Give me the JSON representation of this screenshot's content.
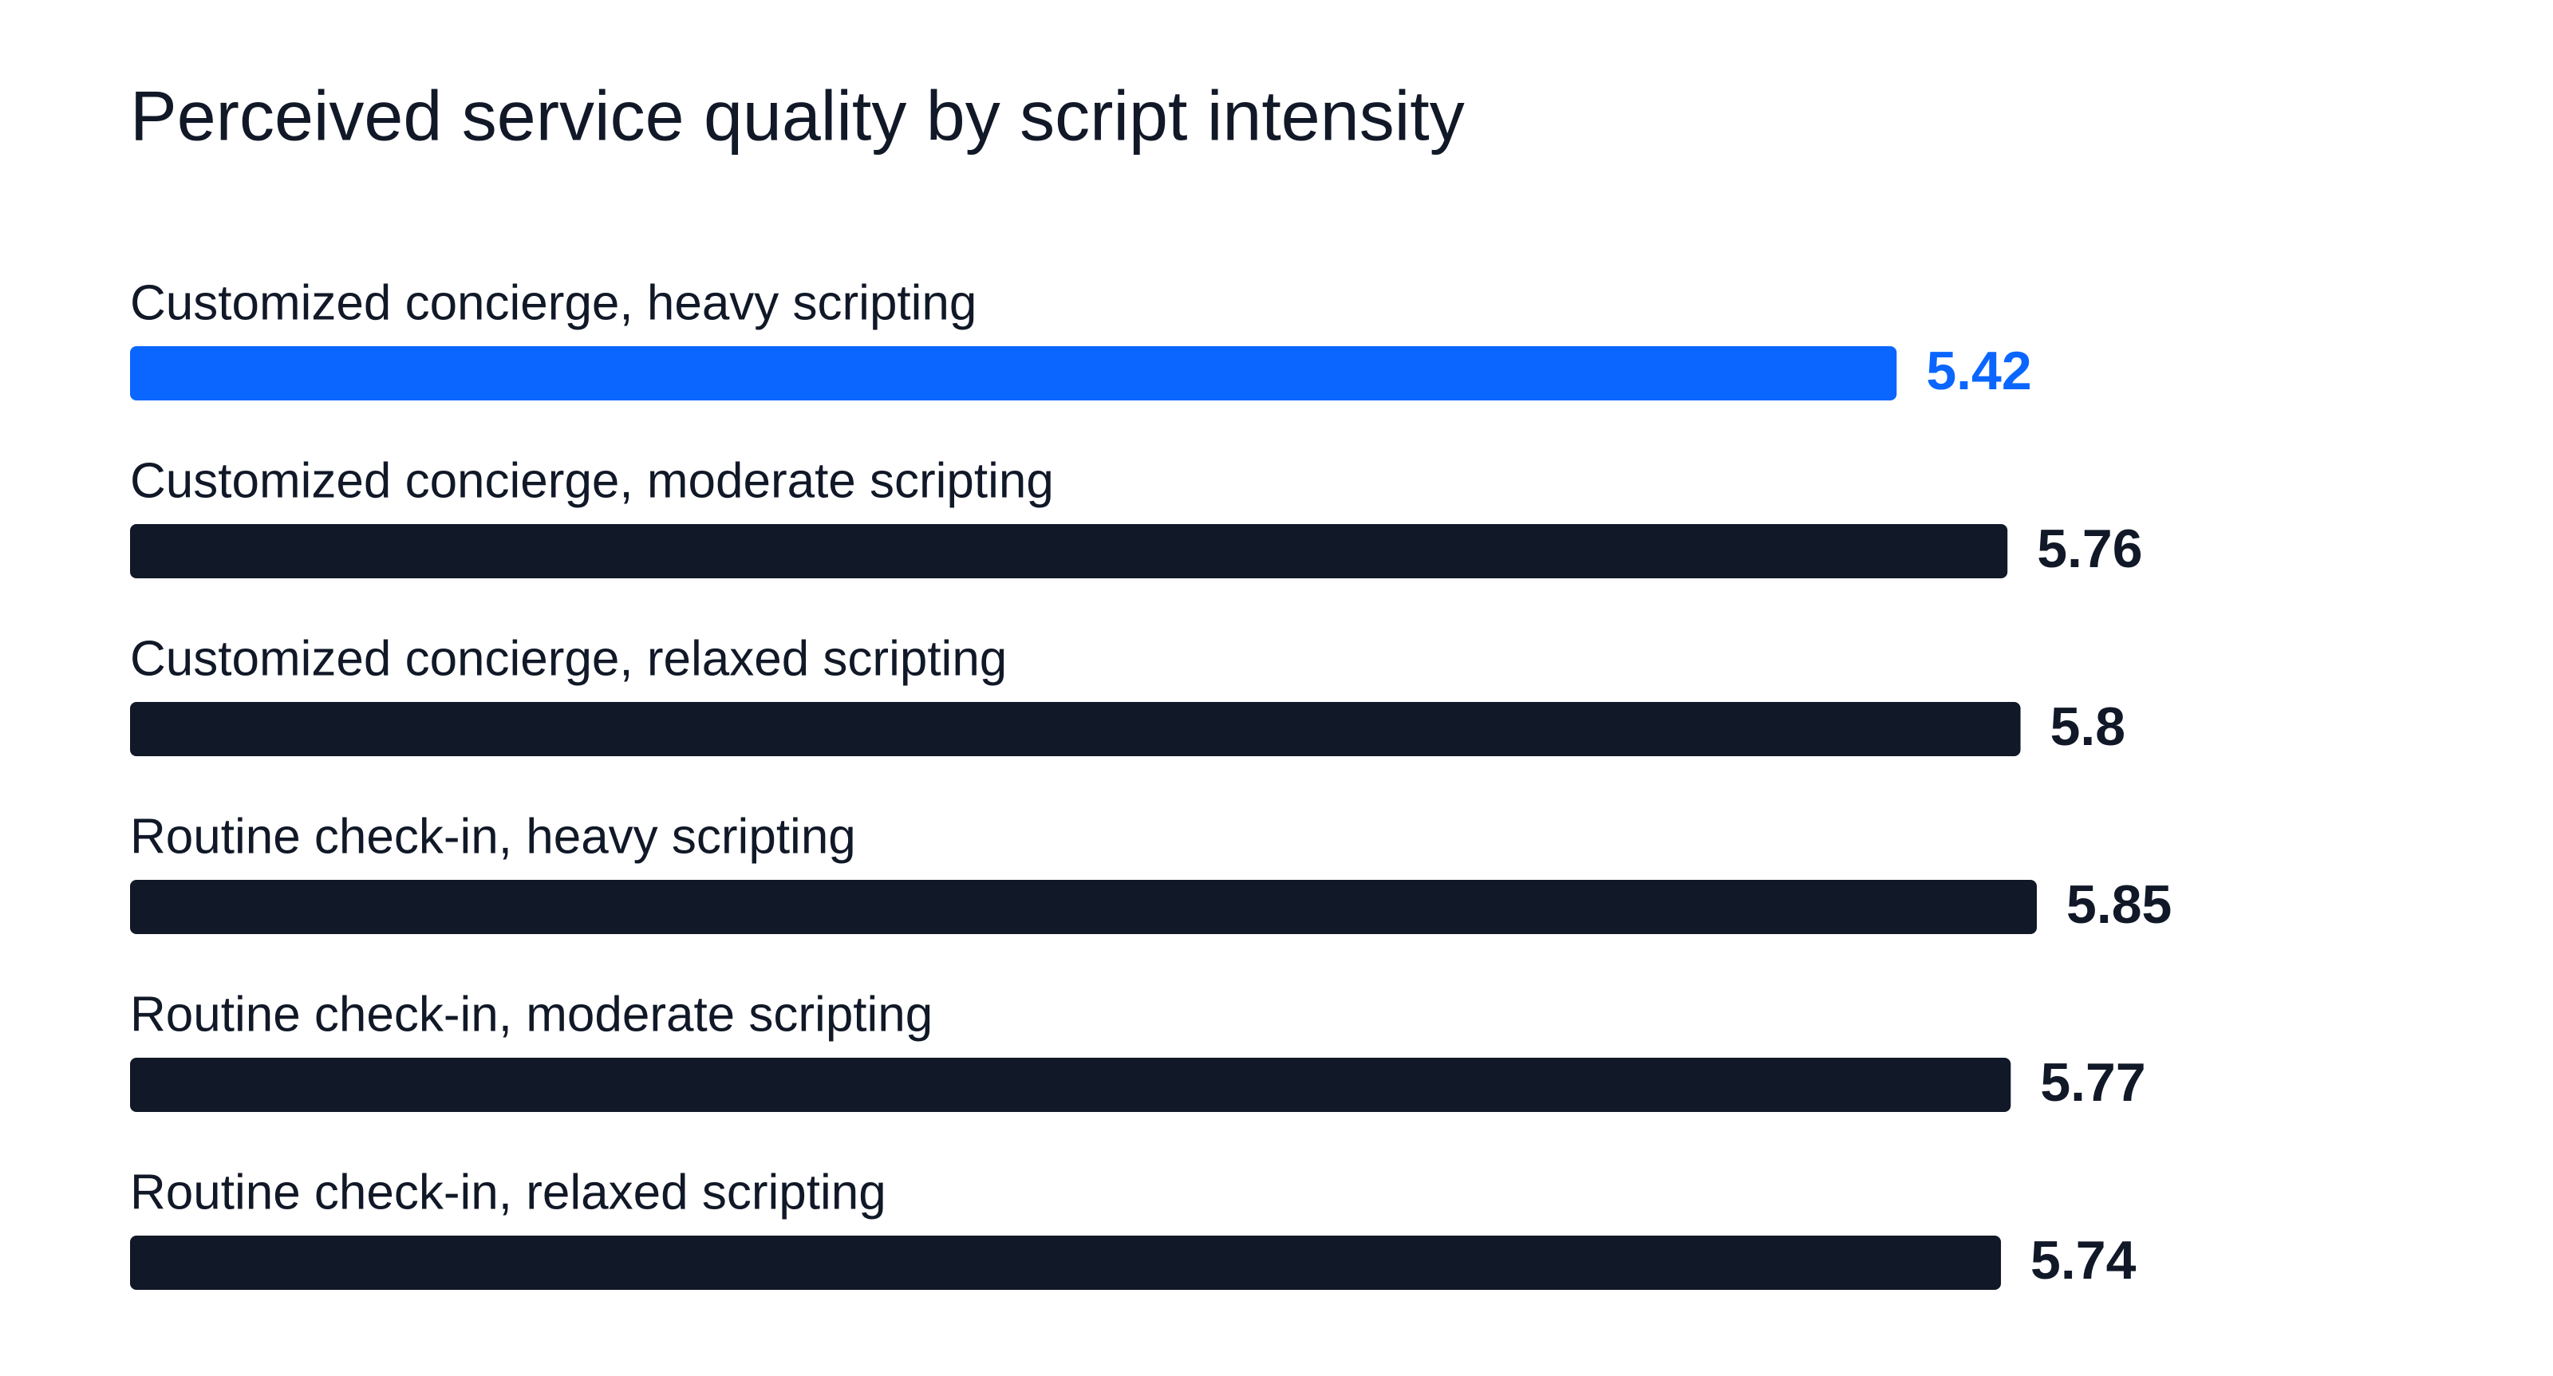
{
  "chart_data": {
    "type": "bar",
    "orientation": "horizontal",
    "title": "Perceived service quality by script intensity",
    "categories": [
      "Customized concierge, heavy scripting",
      "Customized concierge, moderate scripting",
      "Customized concierge, relaxed scripting",
      "Routine check-in, heavy scripting",
      "Routine check-in, moderate scripting",
      "Routine check-in, relaxed scripting"
    ],
    "values": [
      5.42,
      5.76,
      5.8,
      5.85,
      5.77,
      5.74
    ],
    "colors": [
      "#0a66ff",
      "#111827",
      "#111827",
      "#111827",
      "#111827",
      "#111827"
    ]
  }
}
